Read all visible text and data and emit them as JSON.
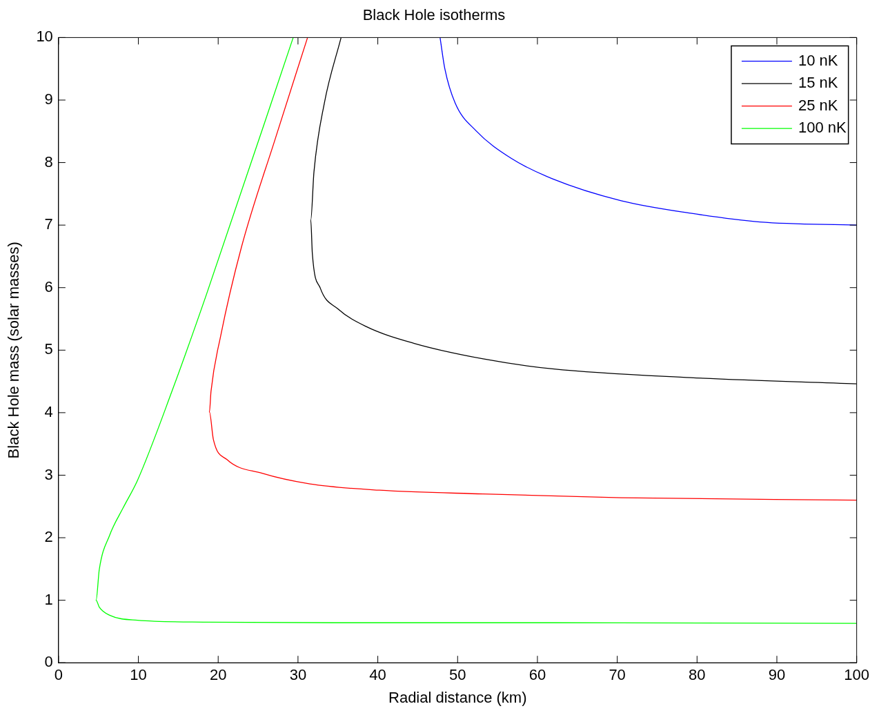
{
  "chart_data": {
    "type": "line",
    "title": "Black Hole isotherms",
    "xlabel": "Radial distance (km)",
    "ylabel": "Black Hole mass (solar masses)",
    "xlim": [
      0,
      100
    ],
    "ylim": [
      0,
      10
    ],
    "xticks": [
      0,
      10,
      20,
      30,
      40,
      50,
      60,
      70,
      80,
      90,
      100
    ],
    "yticks": [
      0,
      1,
      2,
      3,
      4,
      5,
      6,
      7,
      8,
      9,
      10
    ],
    "grid": false,
    "legend": "top right",
    "series": [
      {
        "name": "10 nK",
        "color": "#0000ff",
        "x": [
          47.8,
          48.4,
          49.7,
          52.3,
          56.7,
          61.9,
          70.5,
          79.2,
          87.9,
          100
        ],
        "values": [
          10,
          9.5,
          8.95,
          8.51,
          8.07,
          7.74,
          7.39,
          7.19,
          7.05,
          7.0
        ]
      },
      {
        "name": "15 nK",
        "color": "#000000",
        "x": [
          35.4,
          33.3,
          32.0,
          31.6,
          31.8,
          32.8,
          35.0,
          38.5,
          44.5,
          53.2,
          61.9,
          79.2,
          100
        ],
        "values": [
          10,
          8.95,
          7.85,
          7.08,
          6.54,
          5.99,
          5.66,
          5.38,
          5.11,
          4.86,
          4.7,
          4.56,
          4.46
        ]
      },
      {
        "name": "25 nK",
        "color": "#ff0000",
        "x": [
          31.2,
          27.2,
          22.9,
          20.3,
          19.1,
          18.9,
          19.4,
          21.1,
          25.5,
          31.5,
          40.2,
          53.2,
          70.5,
          100
        ],
        "values": [
          10,
          8.4,
          6.64,
          5.22,
          4.34,
          4.01,
          3.57,
          3.25,
          3.03,
          2.86,
          2.76,
          2.7,
          2.64,
          2.6
        ]
      },
      {
        "name": "100 nK",
        "color": "#00ff00",
        "x": [
          29.4,
          18.5,
          14.2,
          9.9,
          8.1,
          6.4,
          5.1,
          4.7,
          5.1,
          6.4,
          9.9,
          18.5,
          35.9,
          61.9,
          100
        ],
        "values": [
          10,
          5.88,
          4.34,
          2.92,
          2.48,
          2.04,
          1.49,
          1.0,
          0.89,
          0.76,
          0.68,
          0.65,
          0.64,
          0.64,
          0.63
        ]
      }
    ]
  }
}
